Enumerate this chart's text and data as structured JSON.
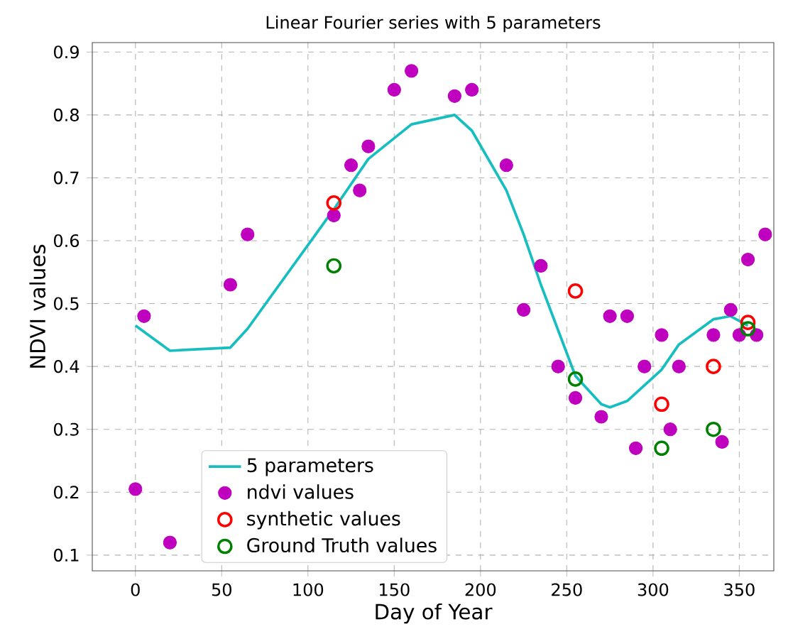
{
  "chart_data": {
    "type": "scatter",
    "title": "Linear Fourier series with 5 parameters",
    "xlabel": "Day of Year",
    "ylabel": "NDVI values",
    "xlim": [
      -25,
      370
    ],
    "ylim": [
      0.075,
      0.915
    ],
    "xticks": [
      0,
      50,
      100,
      150,
      200,
      250,
      300,
      350
    ],
    "yticks": [
      0.1,
      0.2,
      0.3,
      0.4,
      0.5,
      0.6,
      0.7,
      0.8,
      0.9
    ],
    "grid": true,
    "legend": "bottom left",
    "series": [
      {
        "name": "5 parameters",
        "type": "line",
        "color": "#17bebf",
        "marker": "none",
        "line_style": "solid",
        "x": [
          0,
          20,
          55,
          65,
          115,
          125,
          135,
          160,
          185,
          195,
          215,
          225,
          235,
          255,
          270,
          275,
          285,
          305,
          315,
          335,
          345,
          355
        ],
        "values": [
          0.465,
          0.425,
          0.43,
          0.46,
          0.65,
          0.69,
          0.73,
          0.785,
          0.8,
          0.775,
          0.68,
          0.61,
          0.53,
          0.385,
          0.34,
          0.335,
          0.345,
          0.395,
          0.435,
          0.475,
          0.48,
          0.465
        ]
      },
      {
        "name": "ndvi values",
        "color": "#bf00bf",
        "marker": "circle",
        "x": [
          0,
          5,
          20,
          55,
          65,
          115,
          125,
          130,
          135,
          150,
          160,
          185,
          195,
          215,
          225,
          235,
          245,
          255,
          270,
          275,
          285,
          290,
          295,
          305,
          310,
          315,
          335,
          340,
          345,
          350,
          355,
          360,
          365
        ],
        "values": [
          0.205,
          0.48,
          0.12,
          0.53,
          0.61,
          0.64,
          0.72,
          0.68,
          0.75,
          0.84,
          0.87,
          0.83,
          0.84,
          0.72,
          0.49,
          0.56,
          0.4,
          0.35,
          0.32,
          0.48,
          0.48,
          0.27,
          0.4,
          0.45,
          0.3,
          0.4,
          0.45,
          0.28,
          0.49,
          0.45,
          0.57,
          0.45,
          0.61
        ]
      },
      {
        "name": "synthetic values",
        "color": "#ff0000",
        "marker": "circle",
        "x": [
          115,
          255,
          305,
          335,
          355
        ],
        "values": [
          0.66,
          0.52,
          0.34,
          0.4,
          0.47
        ]
      },
      {
        "name": "Ground Truth  values",
        "color": "#008000",
        "marker": "circle",
        "x": [
          115,
          255,
          305,
          335,
          355
        ],
        "values": [
          0.56,
          0.38,
          0.27,
          0.3,
          0.46
        ]
      }
    ]
  }
}
